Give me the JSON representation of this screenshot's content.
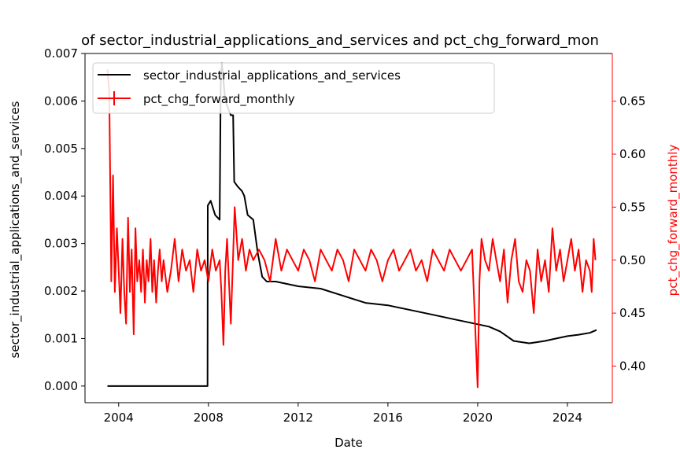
{
  "chart_data": {
    "type": "line",
    "title": "of sector_industrial_applications_and_services and pct_chg_forward_mon",
    "xlabel": "Date",
    "ylabel_left": "sector_industrial_applications_and_services",
    "ylabel_right": "pct_chg_forward_monthly",
    "x_ticks": [
      2004,
      2008,
      2012,
      2016,
      2020,
      2024
    ],
    "y_left_ticks": [
      "0.000",
      "0.001",
      "0.002",
      "0.003",
      "0.004",
      "0.005",
      "0.006",
      "0.007"
    ],
    "y_right_ticks": [
      "0.40",
      "0.45",
      "0.50",
      "0.55",
      "0.60",
      "0.65"
    ],
    "xlim": [
      2002.5,
      2026.0
    ],
    "ylim_left": [
      -0.00035,
      0.007
    ],
    "ylim_right": [
      0.3655,
      0.695
    ],
    "grid": false,
    "legend_position": "upper-left",
    "colors": {
      "left_series": "#000000",
      "right_series": "#ff0000",
      "right_axis": "#ff0000"
    },
    "series": [
      {
        "name": "sector_industrial_applications_and_services",
        "axis": "left",
        "x": [
          2003.5,
          2007.96,
          2007.97,
          2008.1,
          2008.3,
          2008.5,
          2008.55,
          2008.6,
          2008.75,
          2009.0,
          2009.1,
          2009.15,
          2009.3,
          2009.5,
          2009.6,
          2009.75,
          2010.0,
          2010.2,
          2010.4,
          2010.6,
          2011.0,
          2011.5,
          2012.0,
          2013.0,
          2014.0,
          2015.0,
          2016.0,
          2017.0,
          2018.0,
          2019.0,
          2020.0,
          2020.5,
          2021.0,
          2021.3,
          2021.6,
          2022.0,
          2022.3,
          2022.6,
          2023.0,
          2023.5,
          2024.0,
          2024.5,
          2025.0,
          2025.3
        ],
        "values": [
          0.0,
          0.0,
          0.0038,
          0.0039,
          0.0036,
          0.0035,
          0.0065,
          0.0068,
          0.006,
          0.0057,
          0.0057,
          0.0043,
          0.0042,
          0.0041,
          0.004,
          0.0036,
          0.0035,
          0.0028,
          0.0023,
          0.0022,
          0.0022,
          0.00215,
          0.0021,
          0.00205,
          0.0019,
          0.00175,
          0.0017,
          0.0016,
          0.0015,
          0.0014,
          0.0013,
          0.00125,
          0.00115,
          0.00105,
          0.00095,
          0.00092,
          0.0009,
          0.00092,
          0.00095,
          0.001,
          0.00105,
          0.00108,
          0.00112,
          0.00118
        ]
      },
      {
        "name": "pct_chg_forward_monthly",
        "axis": "right",
        "x": [
          2003.5,
          2003.58,
          2003.67,
          2003.75,
          2003.83,
          2003.92,
          2004.0,
          2004.08,
          2004.17,
          2004.25,
          2004.33,
          2004.42,
          2004.5,
          2004.58,
          2004.67,
          2004.75,
          2004.83,
          2004.92,
          2005.0,
          2005.08,
          2005.17,
          2005.25,
          2005.33,
          2005.42,
          2005.5,
          2005.58,
          2005.67,
          2005.75,
          2005.83,
          2005.92,
          2006.0,
          2006.17,
          2006.33,
          2006.5,
          2006.67,
          2006.83,
          2007.0,
          2007.17,
          2007.33,
          2007.5,
          2007.67,
          2007.83,
          2008.0,
          2008.17,
          2008.33,
          2008.5,
          2008.58,
          2008.67,
          2008.75,
          2008.83,
          2009.0,
          2009.17,
          2009.33,
          2009.5,
          2009.67,
          2009.83,
          2010.0,
          2010.25,
          2010.5,
          2010.75,
          2011.0,
          2011.25,
          2011.5,
          2011.75,
          2012.0,
          2012.25,
          2012.5,
          2012.75,
          2013.0,
          2013.25,
          2013.5,
          2013.75,
          2014.0,
          2014.25,
          2014.5,
          2014.75,
          2015.0,
          2015.25,
          2015.5,
          2015.75,
          2016.0,
          2016.25,
          2016.5,
          2016.75,
          2017.0,
          2017.25,
          2017.5,
          2017.75,
          2018.0,
          2018.25,
          2018.5,
          2018.75,
          2019.0,
          2019.25,
          2019.5,
          2019.75,
          2020.0,
          2020.08,
          2020.17,
          2020.25,
          2020.33,
          2020.5,
          2020.67,
          2020.83,
          2021.0,
          2021.17,
          2021.33,
          2021.5,
          2021.67,
          2021.83,
          2022.0,
          2022.17,
          2022.33,
          2022.5,
          2022.67,
          2022.83,
          2023.0,
          2023.17,
          2023.33,
          2023.5,
          2023.67,
          2023.83,
          2024.0,
          2024.17,
          2024.33,
          2024.5,
          2024.67,
          2024.83,
          2025.0,
          2025.08,
          2025.17,
          2025.25
        ],
        "values": [
          0.68,
          0.66,
          0.48,
          0.58,
          0.47,
          0.53,
          0.49,
          0.45,
          0.52,
          0.47,
          0.44,
          0.54,
          0.47,
          0.51,
          0.43,
          0.53,
          0.48,
          0.5,
          0.47,
          0.51,
          0.46,
          0.5,
          0.48,
          0.52,
          0.47,
          0.5,
          0.46,
          0.49,
          0.51,
          0.48,
          0.5,
          0.47,
          0.49,
          0.52,
          0.48,
          0.51,
          0.49,
          0.5,
          0.47,
          0.51,
          0.49,
          0.5,
          0.48,
          0.51,
          0.49,
          0.5,
          0.47,
          0.42,
          0.49,
          0.52,
          0.44,
          0.55,
          0.5,
          0.52,
          0.49,
          0.51,
          0.5,
          0.51,
          0.5,
          0.48,
          0.52,
          0.49,
          0.51,
          0.5,
          0.49,
          0.51,
          0.5,
          0.48,
          0.51,
          0.5,
          0.49,
          0.51,
          0.5,
          0.48,
          0.51,
          0.5,
          0.49,
          0.51,
          0.5,
          0.48,
          0.5,
          0.51,
          0.49,
          0.5,
          0.51,
          0.49,
          0.5,
          0.48,
          0.51,
          0.5,
          0.49,
          0.51,
          0.5,
          0.49,
          0.5,
          0.51,
          0.38,
          0.48,
          0.52,
          0.51,
          0.5,
          0.49,
          0.52,
          0.5,
          0.48,
          0.51,
          0.46,
          0.5,
          0.52,
          0.48,
          0.47,
          0.5,
          0.49,
          0.45,
          0.51,
          0.48,
          0.5,
          0.47,
          0.53,
          0.49,
          0.51,
          0.48,
          0.5,
          0.52,
          0.49,
          0.51,
          0.47,
          0.5,
          0.49,
          0.47,
          0.52,
          0.5
        ]
      }
    ]
  }
}
